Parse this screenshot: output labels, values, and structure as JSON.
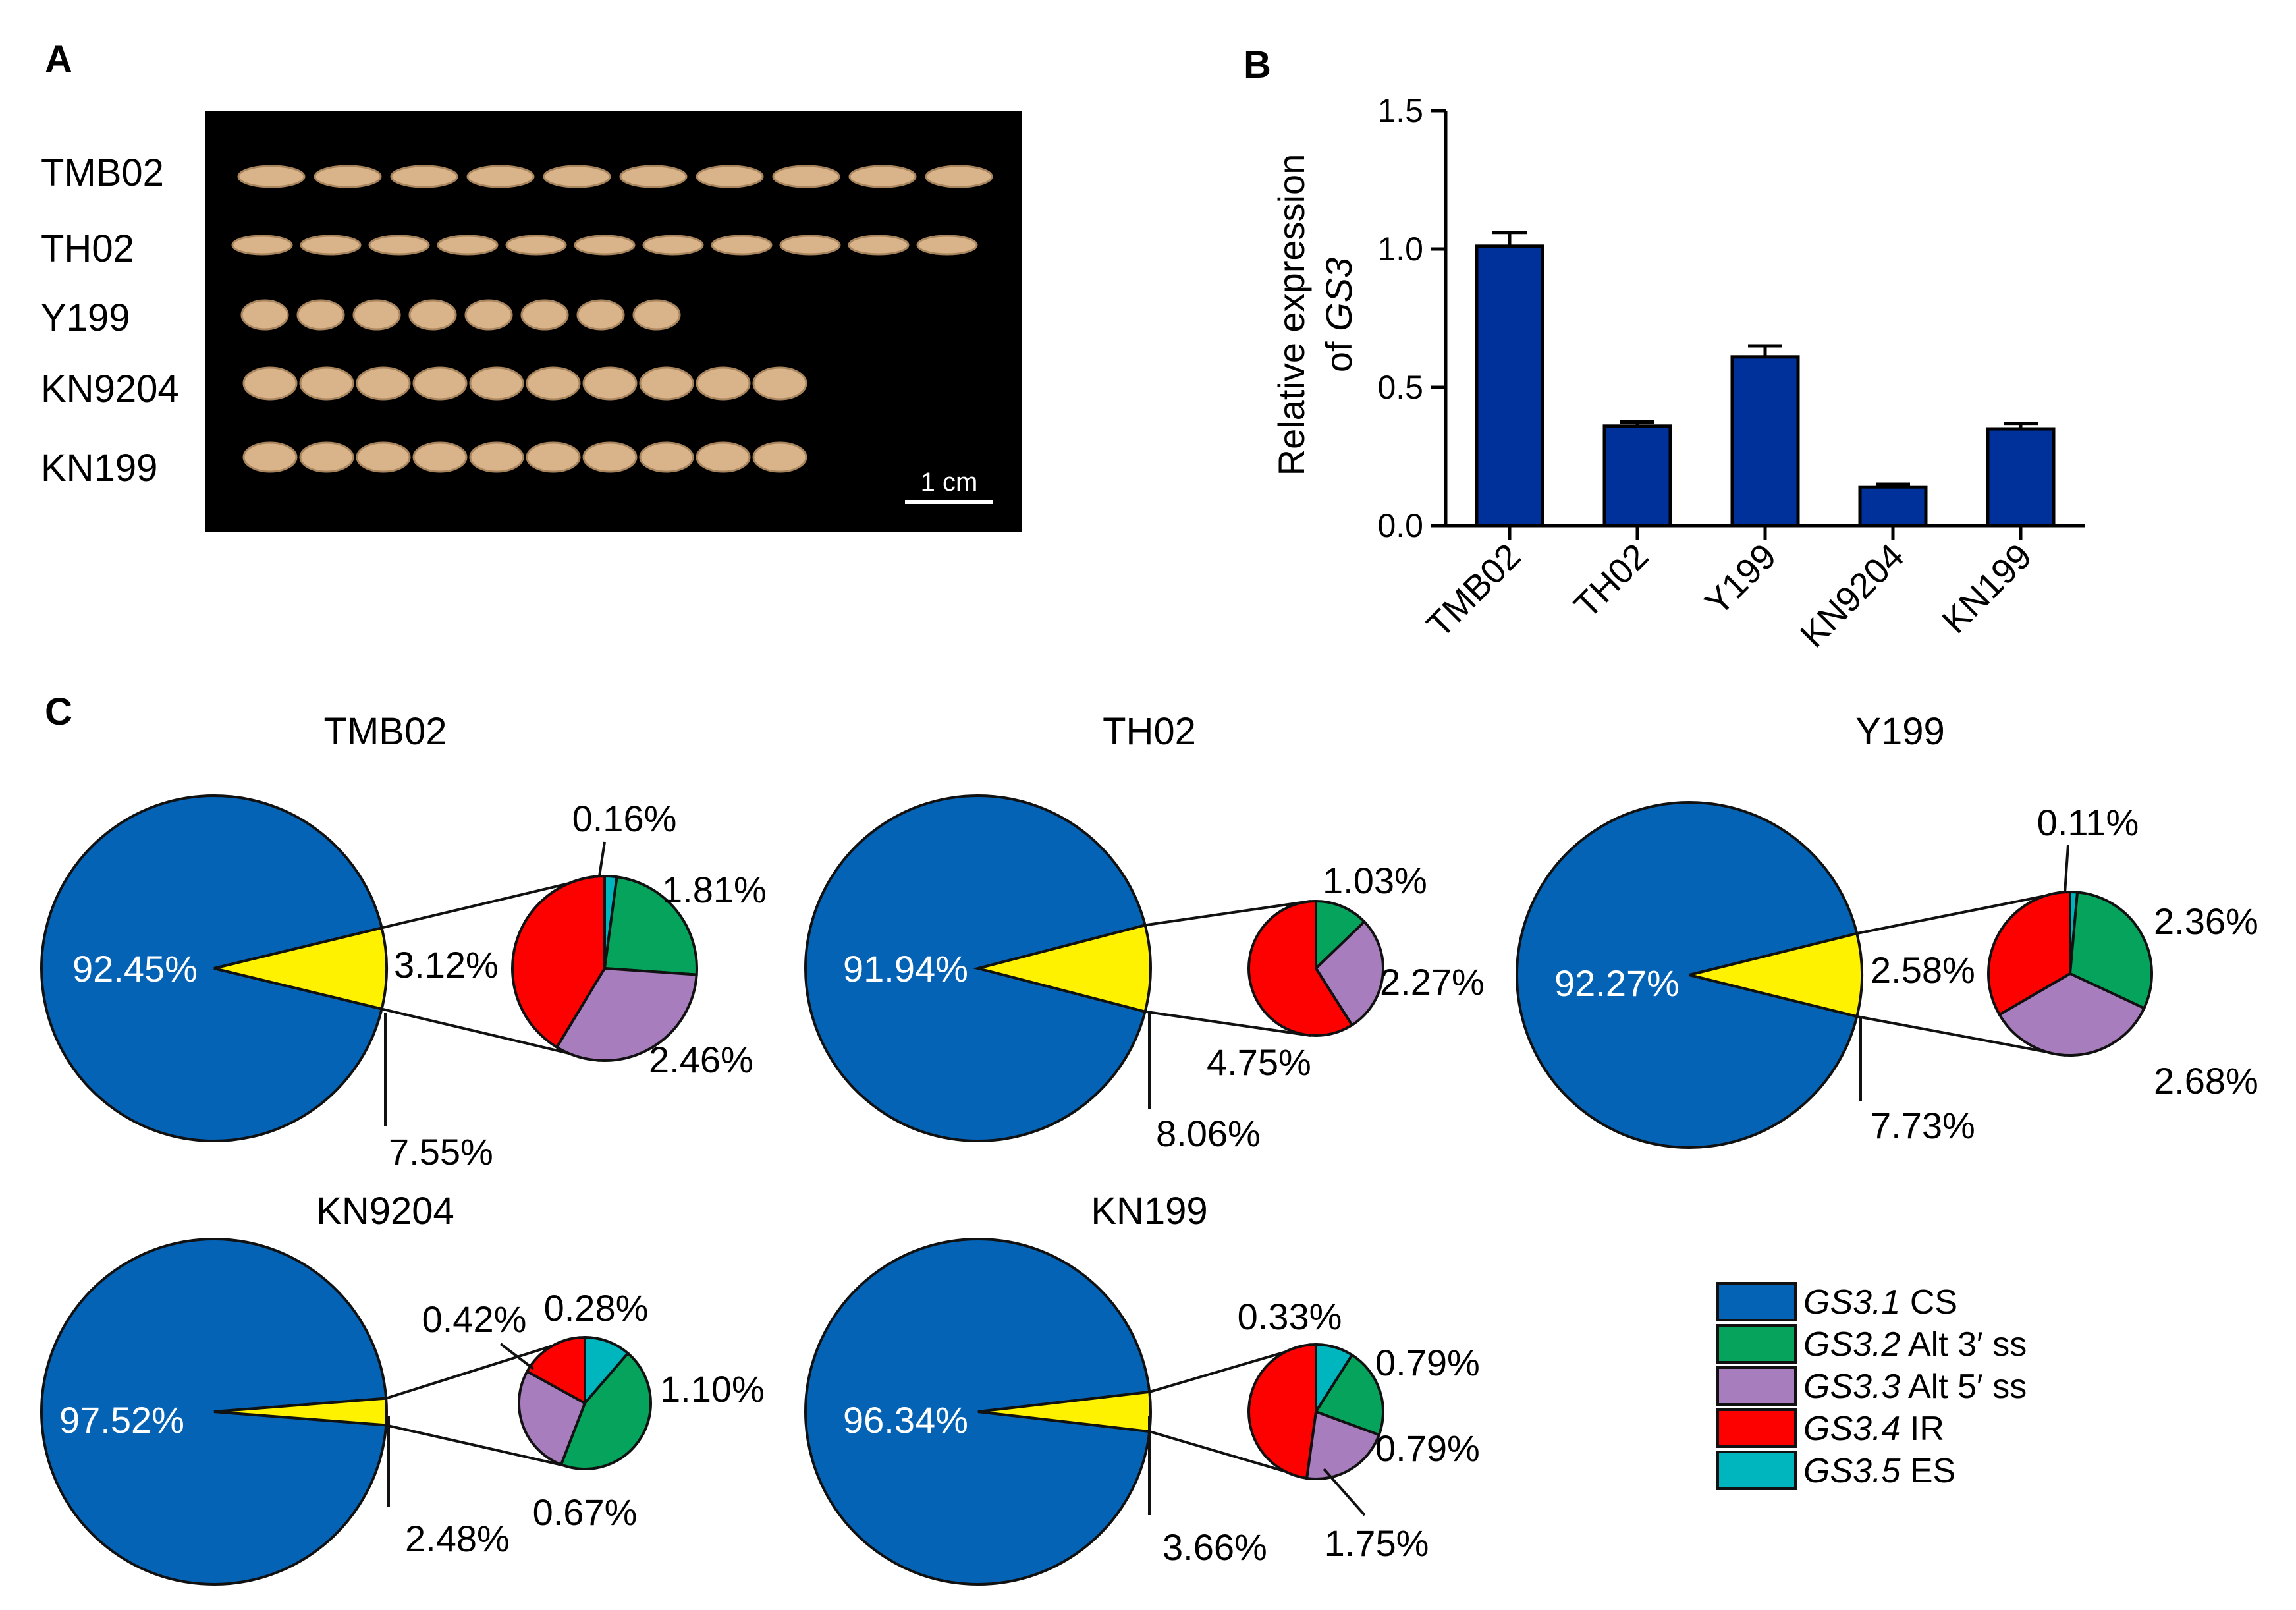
{
  "panel_labels": {
    "a": "A",
    "b": "B",
    "c": "C"
  },
  "panel_a": {
    "row_labels": [
      "TMB02",
      "TH02",
      "Y199",
      "KN9204",
      "KN199"
    ],
    "seed_counts": [
      10,
      11,
      8,
      10,
      10
    ],
    "scale_bar_label": "1 cm",
    "colors": {
      "background": "#000000",
      "seed": "#d9b48b",
      "seed_edge": "#a9855e"
    }
  },
  "chart_data": [
    {
      "type": "bar",
      "title": "",
      "categories": [
        "TMB02",
        "TH02",
        "Y199",
        "KN9204",
        "KN199"
      ],
      "values": [
        1.01,
        0.36,
        0.61,
        0.14,
        0.35
      ],
      "errors": [
        0.05,
        0.015,
        0.04,
        0.01,
        0.02
      ],
      "ylabel": "Relative expression of GS3",
      "ylabel_line1": "Relative expression",
      "ylabel_line2_prefix": "of ",
      "ylabel_gene": "GS3",
      "ylim": [
        0,
        1.5
      ],
      "yticks": [
        0.0,
        0.5,
        1.0,
        1.5
      ],
      "ytick_labels": [
        "0.0",
        "0.5",
        "1.0",
        "1.5"
      ],
      "bar_color": "#00309a"
    },
    {
      "type": "pie",
      "title": "TMB02",
      "main_slices": [
        92.45,
        7.55
      ],
      "main_labels": [
        "92.45%",
        "7.55%"
      ],
      "detail_slices": [
        {
          "isoform": "GS3.5",
          "value": 0.16
        },
        {
          "isoform": "GS3.2",
          "value": 1.81
        },
        {
          "isoform": "GS3.3",
          "value": 2.46
        },
        {
          "isoform": "GS3.4",
          "value": 3.12
        }
      ],
      "detail_labels": [
        "0.16%",
        "1.81%",
        "2.46%",
        "3.12%"
      ]
    },
    {
      "type": "pie",
      "title": "TH02",
      "main_slices": [
        91.94,
        8.06
      ],
      "main_labels": [
        "91.94%",
        "8.06%"
      ],
      "detail_slices": [
        {
          "isoform": "GS3.2",
          "value": 1.03
        },
        {
          "isoform": "GS3.3",
          "value": 2.27
        },
        {
          "isoform": "GS3.4",
          "value": 4.75
        }
      ],
      "detail_labels": [
        "1.03%",
        "2.27%",
        "4.75%"
      ]
    },
    {
      "type": "pie",
      "title": "Y199",
      "main_slices": [
        92.27,
        7.73
      ],
      "main_labels": [
        "92.27%",
        "7.73%"
      ],
      "detail_slices": [
        {
          "isoform": "GS3.5",
          "value": 0.11
        },
        {
          "isoform": "GS3.2",
          "value": 2.36
        },
        {
          "isoform": "GS3.3",
          "value": 2.68
        },
        {
          "isoform": "GS3.4",
          "value": 2.58
        }
      ],
      "detail_labels": [
        "0.11%",
        "2.36%",
        "2.68%",
        "2.58%"
      ]
    },
    {
      "type": "pie",
      "title": "KN9204",
      "main_slices": [
        97.52,
        2.48
      ],
      "main_labels": [
        "97.52%",
        "2.48%"
      ],
      "detail_slices": [
        {
          "isoform": "GS3.5",
          "value": 0.28
        },
        {
          "isoform": "GS3.2",
          "value": 1.1
        },
        {
          "isoform": "GS3.3",
          "value": 0.67
        },
        {
          "isoform": "GS3.4",
          "value": 0.42
        }
      ],
      "detail_labels": [
        "0.28%",
        "1.10%",
        "0.67%",
        "0.42%"
      ]
    },
    {
      "type": "pie",
      "title": "KN199",
      "main_slices": [
        96.34,
        3.66
      ],
      "main_labels": [
        "96.34%",
        "3.66%"
      ],
      "detail_slices": [
        {
          "isoform": "GS3.5",
          "value": 0.33
        },
        {
          "isoform": "GS3.2",
          "value": 0.79
        },
        {
          "isoform": "GS3.3",
          "value": 0.79
        },
        {
          "isoform": "GS3.4",
          "value": 1.75
        }
      ],
      "detail_labels": [
        "0.33%",
        "0.79%",
        "0.79%",
        "1.75%"
      ]
    }
  ],
  "legend": [
    {
      "isoform": "GS3.1",
      "desc": " CS",
      "color": "#0563b5"
    },
    {
      "isoform": "GS3.2",
      "desc": " Alt 3′ ss",
      "color": "#05a35c"
    },
    {
      "isoform": "GS3.3",
      "desc": " Alt 5′ ss",
      "color": "#a77dbe"
    },
    {
      "isoform": "GS3.4",
      "desc": " IR",
      "color": "#fd0000"
    },
    {
      "isoform": "GS3.5",
      "desc": " ES",
      "color": "#00b6be"
    }
  ],
  "colors": {
    "main_pie": "#0563b5",
    "other_slice": "#fff200",
    "GS3.2": "#05a35c",
    "GS3.3": "#a77dbe",
    "GS3.4": "#fd0000",
    "GS3.5": "#00b6be"
  }
}
